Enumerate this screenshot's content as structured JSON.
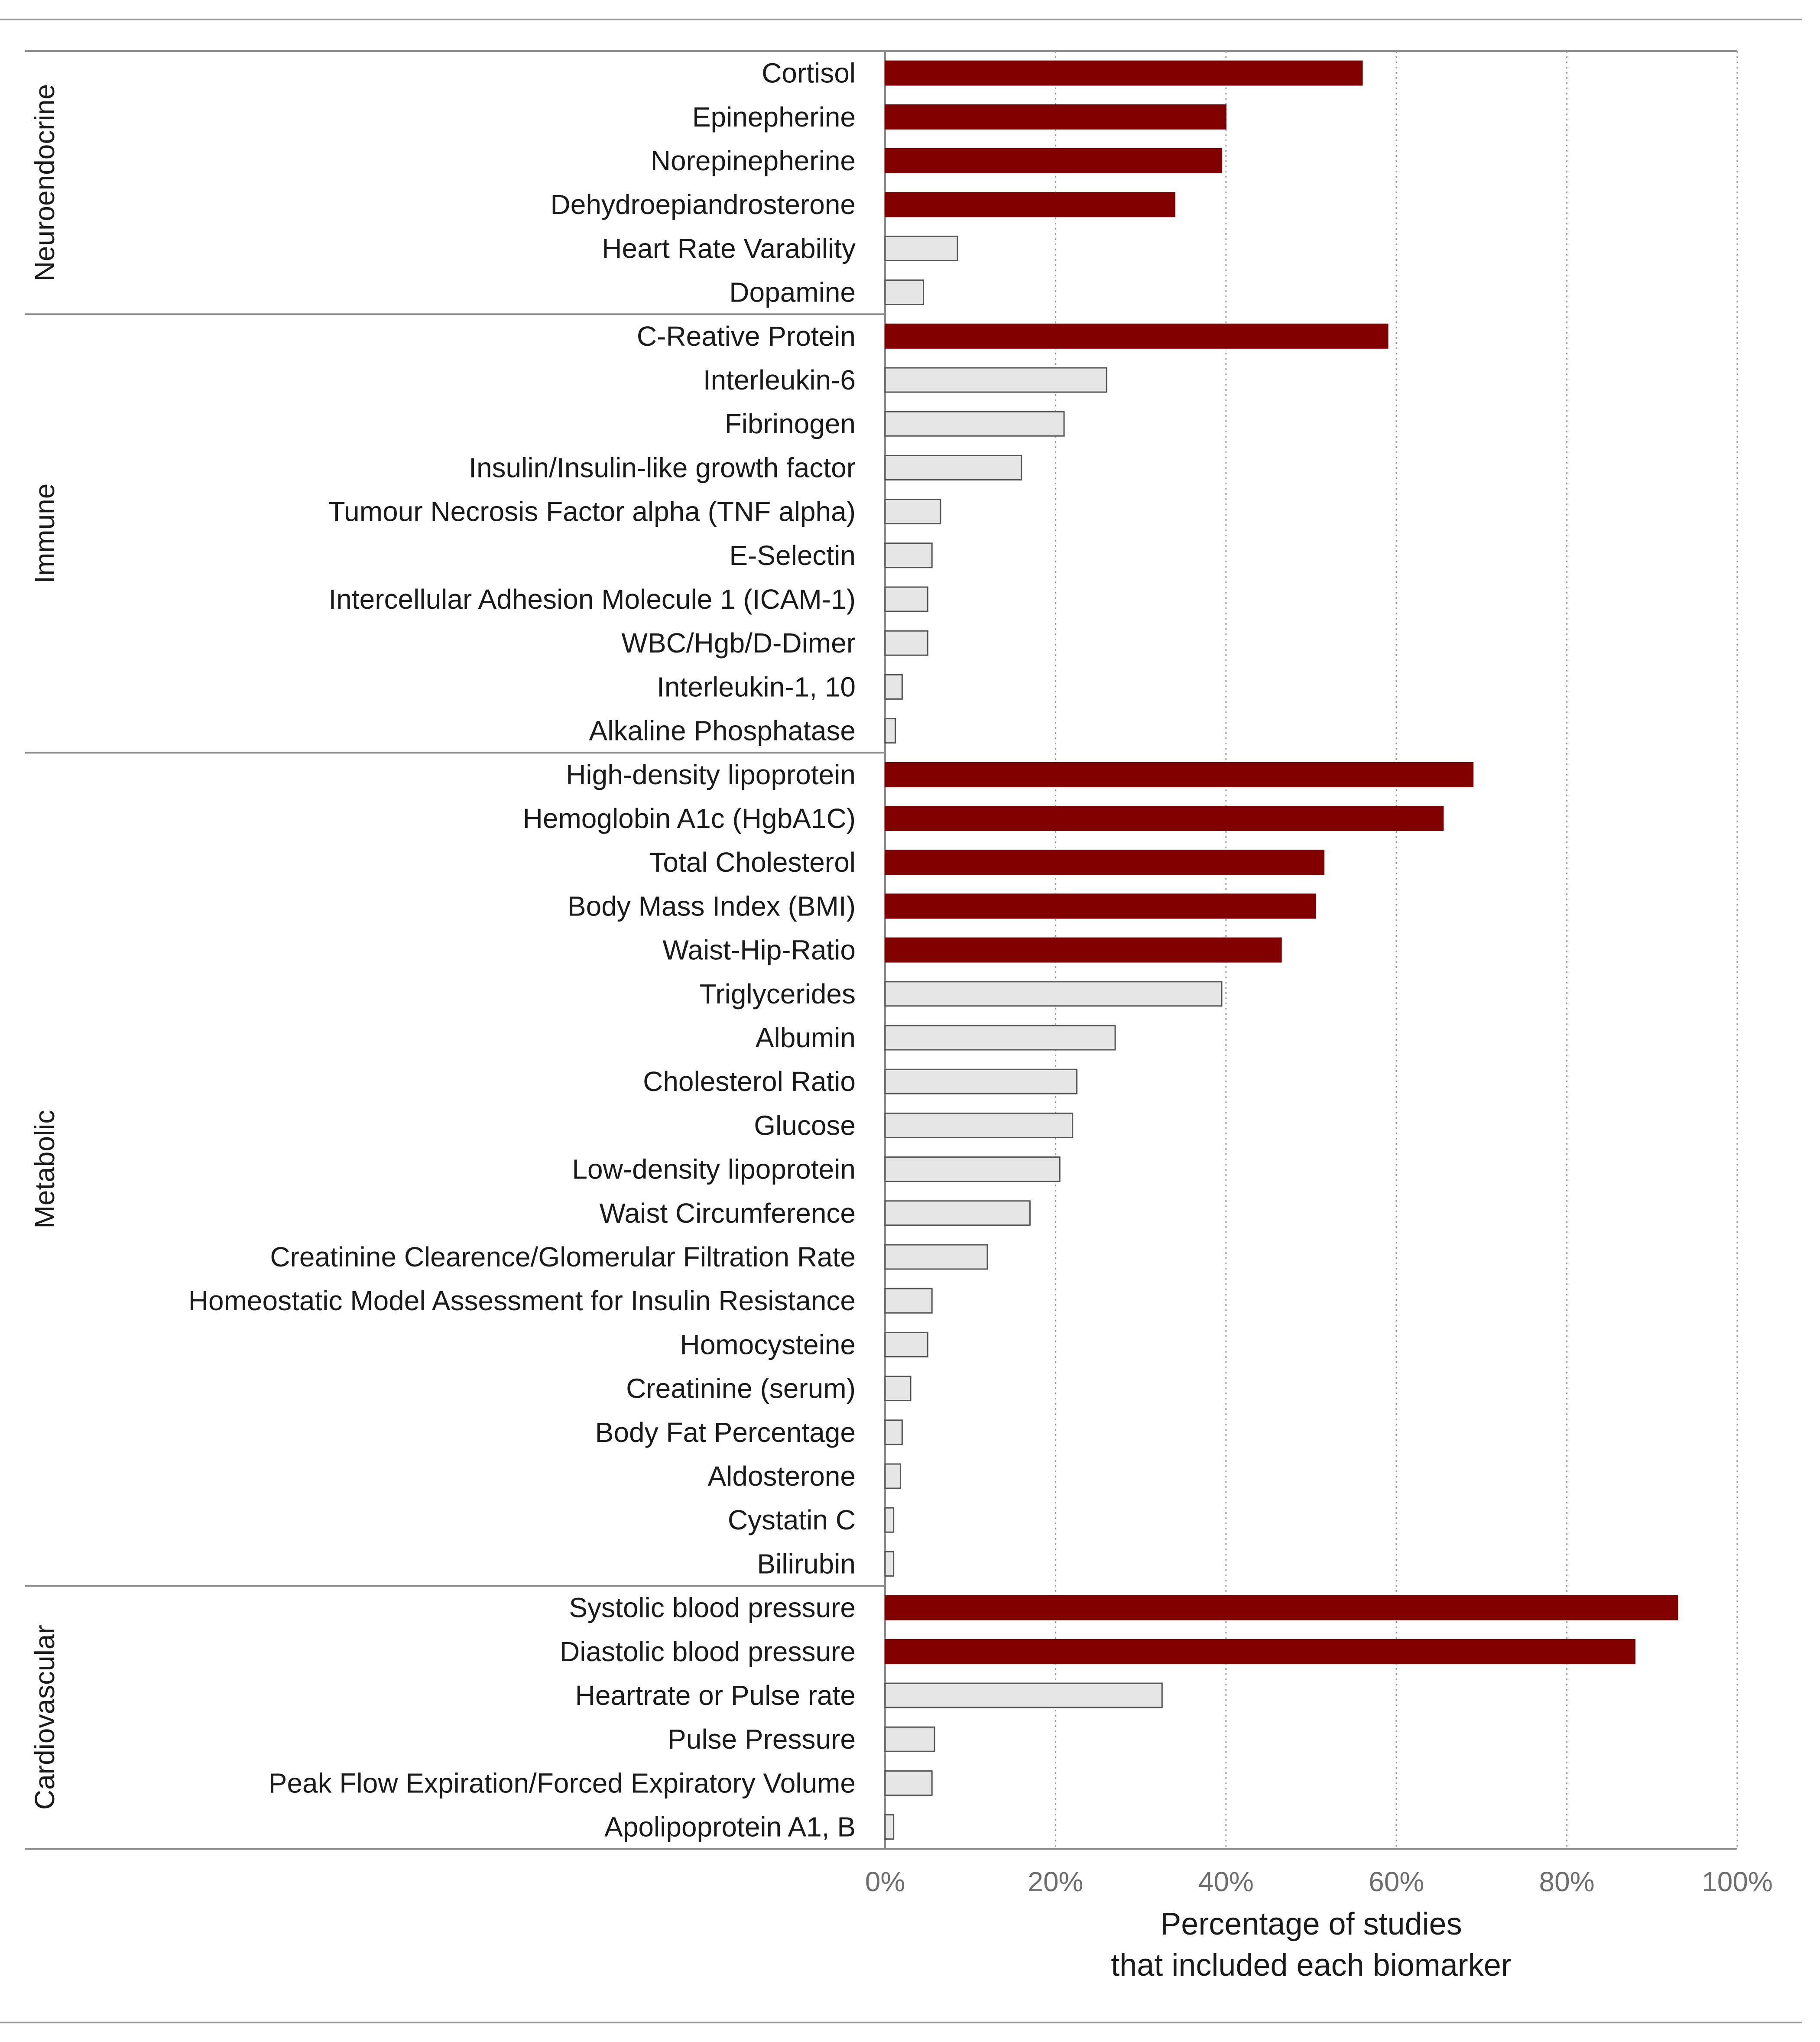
{
  "chart_data": {
    "type": "bar",
    "orientation": "horizontal",
    "xlabel": [
      "Percentage of studies",
      "that included each biomarker"
    ],
    "xlim": [
      0,
      100
    ],
    "x_ticks": [
      0,
      20,
      40,
      60,
      80,
      100
    ],
    "x_tick_labels": [
      "0%",
      "20%",
      "40%",
      "60%",
      "80%",
      "100%"
    ],
    "grid": "vertical dotted",
    "colors": {
      "highlight": "#800000",
      "other": "#e6e6e6",
      "outline": "#555555"
    },
    "groups": [
      {
        "name": "Neuroendocrine",
        "bars": [
          {
            "label": "Cortisol",
            "value": 56,
            "highlight": true
          },
          {
            "label": "Epinepherine",
            "value": 40,
            "highlight": true
          },
          {
            "label": "Norepinepherine",
            "value": 39.5,
            "highlight": true
          },
          {
            "label": "Dehydroepiandrosterone",
            "value": 34,
            "highlight": true
          },
          {
            "label": "Heart Rate Varability",
            "value": 8.5,
            "highlight": false
          },
          {
            "label": "Dopamine",
            "value": 4.5,
            "highlight": false
          }
        ]
      },
      {
        "name": "Immune",
        "bars": [
          {
            "label": "C-Reative Protein",
            "value": 59,
            "highlight": true
          },
          {
            "label": "Interleukin-6",
            "value": 26,
            "highlight": false
          },
          {
            "label": "Fibrinogen",
            "value": 21,
            "highlight": false
          },
          {
            "label": "Insulin/Insulin-like growth factor",
            "value": 16,
            "highlight": false
          },
          {
            "label": "Tumour Necrosis Factor alpha (TNF alpha)",
            "value": 6.5,
            "highlight": false
          },
          {
            "label": "E-Selectin",
            "value": 5.5,
            "highlight": false
          },
          {
            "label": "Intercellular Adhesion Molecule 1 (ICAM-1)",
            "value": 5,
            "highlight": false
          },
          {
            "label": "WBC/Hgb/D-Dimer",
            "value": 5,
            "highlight": false
          },
          {
            "label": "Interleukin-1, 10",
            "value": 2,
            "highlight": false
          },
          {
            "label": "Alkaline Phosphatase",
            "value": 1.2,
            "highlight": false
          }
        ]
      },
      {
        "name": "Metabolic",
        "bars": [
          {
            "label": "High-density lipoprotein",
            "value": 69,
            "highlight": true
          },
          {
            "label": "Hemoglobin A1c (HgbA1C)",
            "value": 65.5,
            "highlight": true
          },
          {
            "label": "Total Cholesterol",
            "value": 51.5,
            "highlight": true
          },
          {
            "label": "Body Mass Index (BMI)",
            "value": 50.5,
            "highlight": true
          },
          {
            "label": "Waist-Hip-Ratio",
            "value": 46.5,
            "highlight": true
          },
          {
            "label": "Triglycerides",
            "value": 39.5,
            "highlight": false
          },
          {
            "label": "Albumin",
            "value": 27,
            "highlight": false
          },
          {
            "label": "Cholesterol Ratio",
            "value": 22.5,
            "highlight": false
          },
          {
            "label": "Glucose",
            "value": 22,
            "highlight": false
          },
          {
            "label": "Low-density lipoprotein",
            "value": 20.5,
            "highlight": false
          },
          {
            "label": "Waist Circumference",
            "value": 17,
            "highlight": false
          },
          {
            "label": "Creatinine Clearence/Glomerular Filtration Rate",
            "value": 12,
            "highlight": false
          },
          {
            "label": "Homeostatic Model Assessment for Insulin Resistance",
            "value": 5.5,
            "highlight": false
          },
          {
            "label": "Homocysteine",
            "value": 5,
            "highlight": false
          },
          {
            "label": "Creatinine (serum)",
            "value": 3,
            "highlight": false
          },
          {
            "label": "Body Fat Percentage",
            "value": 2,
            "highlight": false
          },
          {
            "label": "Aldosterone",
            "value": 1.8,
            "highlight": false
          },
          {
            "label": "Cystatin C",
            "value": 1,
            "highlight": false
          },
          {
            "label": "Bilirubin",
            "value": 1,
            "highlight": false
          }
        ]
      },
      {
        "name": "Cardiovascular",
        "bars": [
          {
            "label": "Systolic blood pressure",
            "value": 93,
            "highlight": true
          },
          {
            "label": "Diastolic blood pressure",
            "value": 88,
            "highlight": true
          },
          {
            "label": "Heartrate or Pulse rate",
            "value": 32.5,
            "highlight": false
          },
          {
            "label": "Pulse Pressure",
            "value": 5.8,
            "highlight": false
          },
          {
            "label": "Peak Flow Expiration/Forced Expiratory Volume",
            "value": 5.5,
            "highlight": false
          },
          {
            "label": "Apolipoprotein A1, B",
            "value": 1,
            "highlight": false
          }
        ]
      }
    ]
  }
}
